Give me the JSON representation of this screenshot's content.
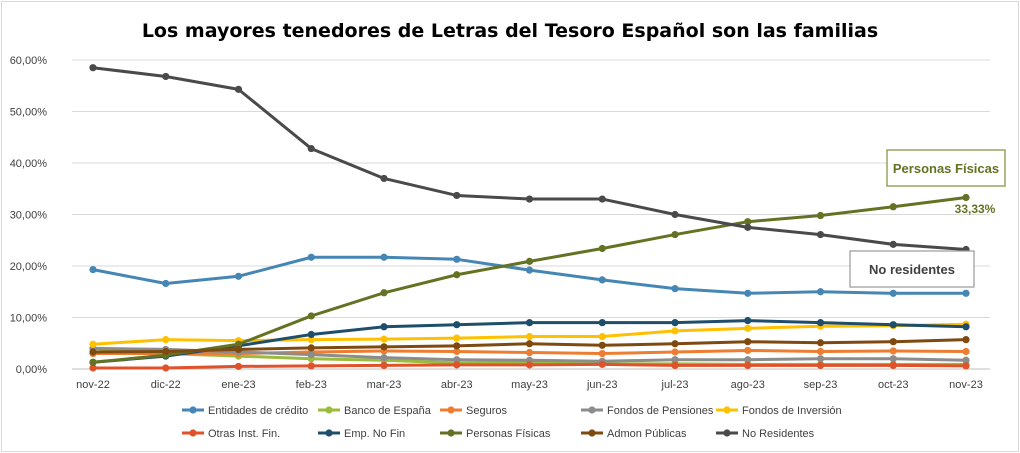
{
  "chart_data": {
    "type": "line",
    "title": "Los mayores tenedores de Letras del Tesoro Español son las familias",
    "xlabel": "",
    "ylabel": "",
    "ylim": [
      0,
      60
    ],
    "y_ticks": [
      "0,00%",
      "10,00%",
      "20,00%",
      "30,00%",
      "40,00%",
      "50,00%",
      "60,00%"
    ],
    "categories": [
      "nov-22",
      "dic-22",
      "ene-23",
      "feb-23",
      "mar-23",
      "abr-23",
      "may-23",
      "jun-23",
      "jul-23",
      "ago-23",
      "sep-23",
      "oct-23",
      "nov-23"
    ],
    "grid": true,
    "legend_position": "bottom",
    "series": [
      {
        "name": "Entidades de crédito",
        "color": "#4586b5",
        "values": [
          19.3,
          16.6,
          18.0,
          21.7,
          21.7,
          21.3,
          19.2,
          17.3,
          15.6,
          14.7,
          15.0,
          14.7,
          14.7
        ]
      },
      {
        "name": "Banco de España",
        "color": "#9bbb3b",
        "values": [
          4.0,
          3.0,
          2.5,
          2.0,
          1.7,
          1.2,
          1.2,
          1.0,
          1.0,
          0.9,
          0.9,
          0.9,
          0.9
        ]
      },
      {
        "name": "Seguros",
        "color": "#ed7d31",
        "values": [
          3.0,
          3.0,
          3.0,
          3.3,
          3.5,
          3.4,
          3.2,
          3.0,
          3.3,
          3.6,
          3.4,
          3.5,
          3.4
        ]
      },
      {
        "name": "Fondos de Pensiones",
        "color": "#8c8c8c",
        "values": [
          4.0,
          3.8,
          3.3,
          2.8,
          2.2,
          1.8,
          1.7,
          1.5,
          1.8,
          1.8,
          2.0,
          2.0,
          1.7
        ]
      },
      {
        "name": "Fondos de Inversión",
        "color": "#ffc000",
        "values": [
          4.8,
          5.7,
          5.5,
          5.7,
          5.8,
          6.0,
          6.3,
          6.3,
          7.4,
          7.9,
          8.3,
          8.4,
          8.7
        ]
      },
      {
        "name": "Otras Inst. Fin.",
        "color": "#e0522a",
        "values": [
          0.2,
          0.2,
          0.5,
          0.6,
          0.7,
          0.8,
          0.8,
          0.9,
          0.7,
          0.7,
          0.7,
          0.7,
          0.6
        ]
      },
      {
        "name": "Emp. No Fin",
        "color": "#1f4e6b",
        "values": [
          1.3,
          2.5,
          4.5,
          6.7,
          8.2,
          8.6,
          9.0,
          9.0,
          9.0,
          9.4,
          9.0,
          8.6,
          8.2
        ]
      },
      {
        "name": "Personas Físicas",
        "color": "#637323",
        "values": [
          1.3,
          2.7,
          4.8,
          10.3,
          14.8,
          18.3,
          20.9,
          23.4,
          26.1,
          28.6,
          29.8,
          31.5,
          33.3
        ]
      },
      {
        "name": "Admon Públicas",
        "color": "#7f4a10",
        "values": [
          3.3,
          3.4,
          3.8,
          4.1,
          4.3,
          4.5,
          4.9,
          4.6,
          4.9,
          5.3,
          5.1,
          5.3,
          5.7
        ]
      },
      {
        "name": "No Residentes",
        "color": "#4a4a4a",
        "values": [
          58.5,
          56.8,
          54.3,
          42.8,
          37.0,
          33.7,
          33.0,
          33.0,
          30.0,
          27.5,
          26.1,
          24.2,
          23.2
        ]
      }
    ],
    "annotations": {
      "personas_label": "Personas Físicas",
      "no_residentes_label": "No residentes",
      "last_value_label": "33,33%"
    }
  }
}
